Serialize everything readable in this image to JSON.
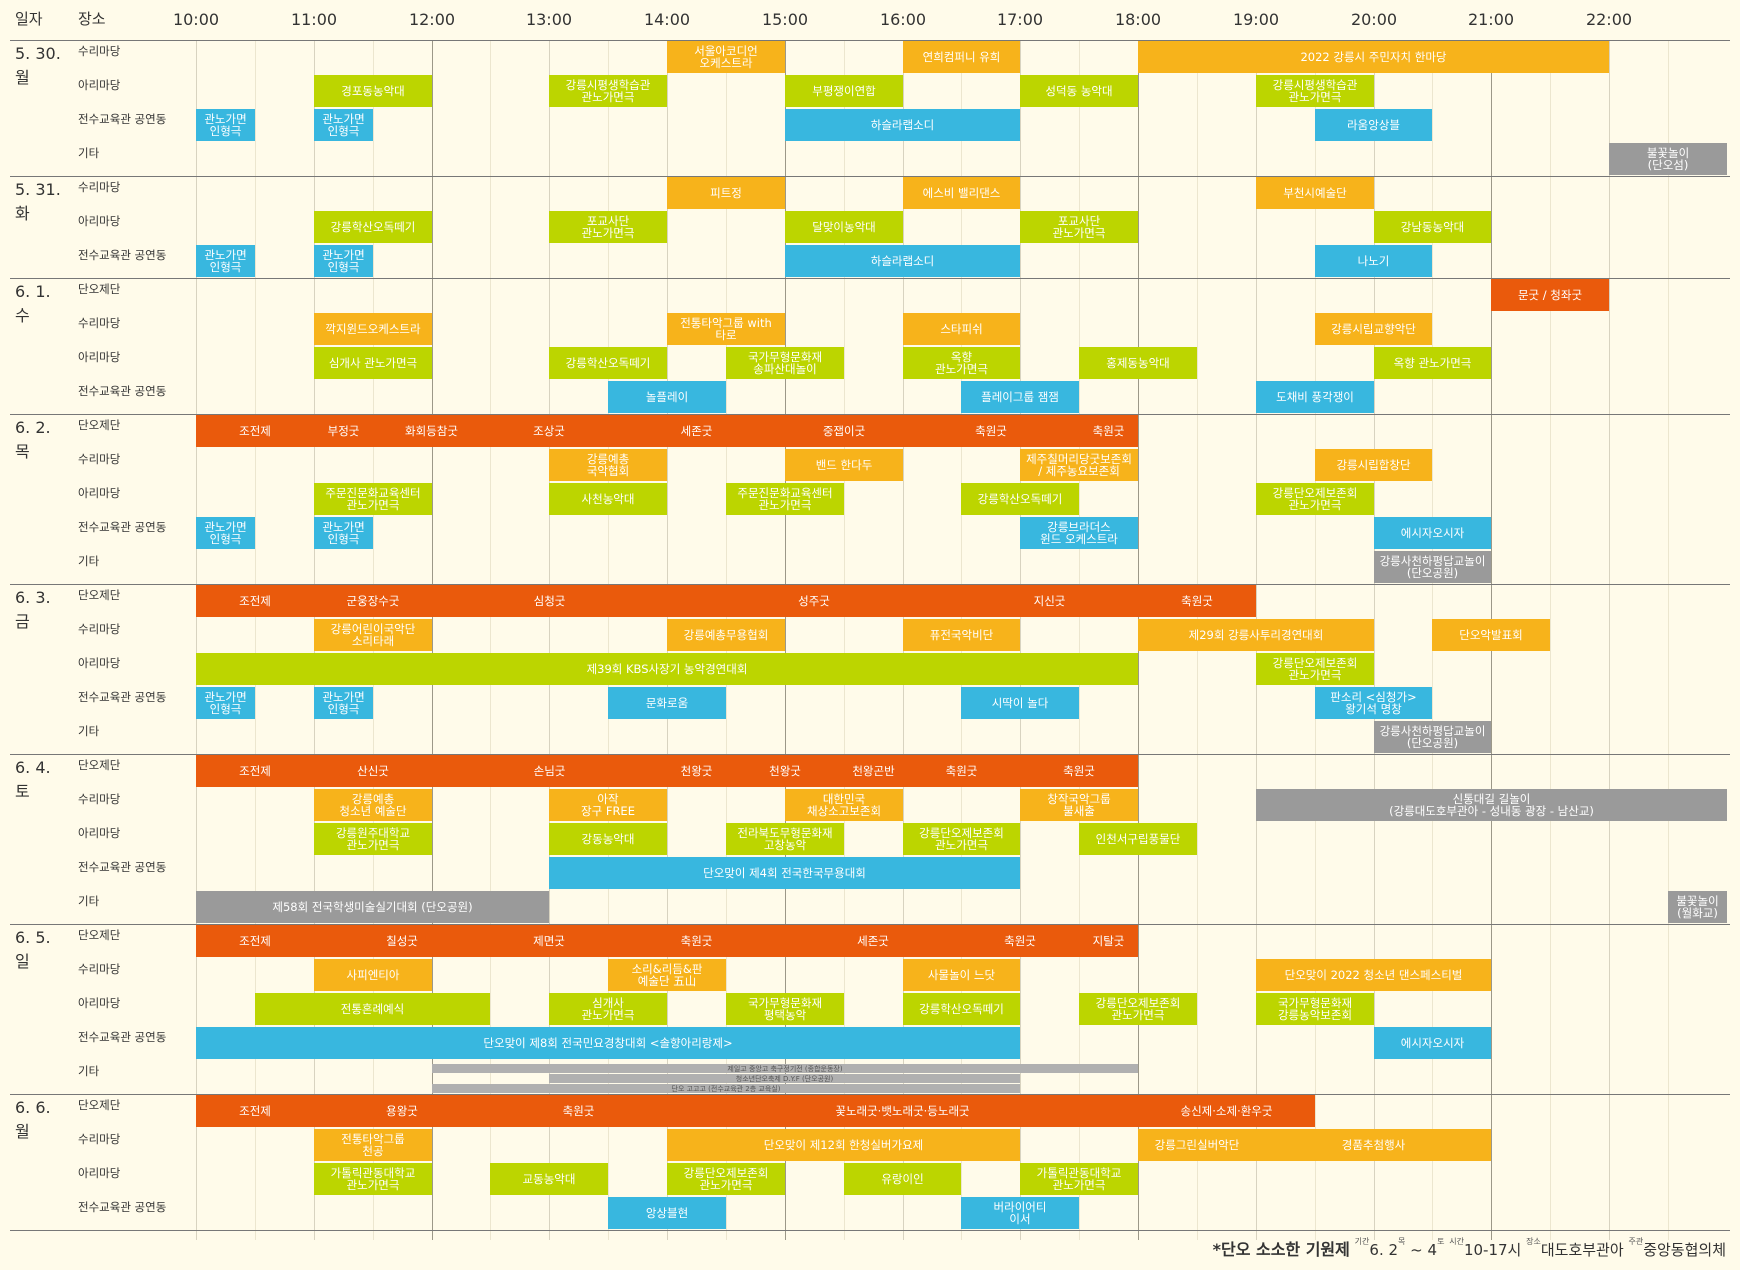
{
  "header": {
    "date_col": "일자",
    "venue_col": "장소"
  },
  "times": [
    "10:00",
    "11:00",
    "12:00",
    "13:00",
    "14:00",
    "15:00",
    "16:00",
    "17:00",
    "18:00",
    "19:00",
    "20:00",
    "21:00",
    "22:00"
  ],
  "colors": {
    "orange": "#f7b31b",
    "green": "#bcd500",
    "blue": "#38b7df",
    "gray": "#9a9a9a",
    "red": "#ea5a0c",
    "bg": "#fffbea"
  },
  "days": [
    {
      "label": "5. 30.\n월",
      "venues": [
        {
          "name": "수리마당",
          "events": [
            [
              "서울아코디언\n오케스트라",
              14,
              15,
              "orange"
            ],
            [
              "연희컴퍼니 유희",
              16,
              17,
              "orange"
            ],
            [
              "2022 강릉시 주민자치 한마당",
              18,
              22,
              "orange"
            ]
          ]
        },
        {
          "name": "아리마당",
          "events": [
            [
              "경포동농악대",
              11,
              12,
              "green"
            ],
            [
              "강릉시평생학습관\n관노가면극",
              13,
              14,
              "green"
            ],
            [
              "부평쟁이연합",
              15,
              16,
              "green"
            ],
            [
              "성덕동 농악대",
              17,
              18,
              "green"
            ],
            [
              "강릉시평생학습관\n관노가면극",
              19,
              20,
              "green"
            ]
          ]
        },
        {
          "name": "전수교육관 공연동",
          "events": [
            [
              "관노가면\n인형극",
              10,
              10.5,
              "blue"
            ],
            [
              "관노가면\n인형극",
              11,
              11.5,
              "blue"
            ],
            [
              "하슬라랩소디",
              15,
              17,
              "blue"
            ],
            [
              "라움앙상블",
              19.5,
              20.5,
              "blue"
            ]
          ]
        },
        {
          "name": "기타",
          "events": [
            [
              "불꽃놀이\n(단오섬)",
              22,
              23,
              "gray"
            ]
          ]
        }
      ]
    },
    {
      "label": "5. 31.\n화",
      "venues": [
        {
          "name": "수리마당",
          "events": [
            [
              "피트정",
              14,
              15,
              "orange"
            ],
            [
              "에스비 밸리댄스",
              16,
              17,
              "orange"
            ],
            [
              "부천시예술단",
              19,
              20,
              "orange"
            ]
          ]
        },
        {
          "name": "아리마당",
          "events": [
            [
              "강릉학산오독떼기",
              11,
              12,
              "green"
            ],
            [
              "포교사단\n관노가면극",
              13,
              14,
              "green"
            ],
            [
              "달맞이농악대",
              15,
              16,
              "green"
            ],
            [
              "포교사단\n관노가면극",
              17,
              18,
              "green"
            ],
            [
              "강남동농악대",
              20,
              21,
              "green"
            ]
          ]
        },
        {
          "name": "전수교육관 공연동",
          "events": [
            [
              "관노가면\n인형극",
              10,
              10.5,
              "blue"
            ],
            [
              "관노가면\n인형극",
              11,
              11.5,
              "blue"
            ],
            [
              "하슬라랩소디",
              15,
              17,
              "blue"
            ],
            [
              "나노기",
              19.5,
              20.5,
              "blue"
            ]
          ]
        }
      ]
    },
    {
      "label": "6. 1.\n수",
      "venues": [
        {
          "name": "단오제단",
          "events": [
            [
              "문굿 / 청좌굿",
              21,
              22,
              "red"
            ]
          ]
        },
        {
          "name": "수리마당",
          "events": [
            [
              "깍지윈드오케스트라",
              11,
              12,
              "orange"
            ],
            [
              "전통타악그룹 with\n타로",
              14,
              15,
              "orange"
            ],
            [
              "스타피쉬",
              16,
              17,
              "orange"
            ],
            [
              "강릉시립교향악단",
              19.5,
              20.5,
              "orange"
            ]
          ]
        },
        {
          "name": "아리마당",
          "events": [
            [
              "심개사 관노가면극",
              11,
              12,
              "green"
            ],
            [
              "강릉학산오독떼기",
              13,
              14,
              "green"
            ],
            [
              "국가무형문화재\n송파산대놀이",
              14.5,
              15.5,
              "green"
            ],
            [
              "옥향\n관노가면극",
              16,
              17,
              "green"
            ],
            [
              "홍제동농악대",
              17.5,
              18.5,
              "green"
            ],
            [
              "옥향 관노가면극",
              20,
              21,
              "green"
            ]
          ]
        },
        {
          "name": "전수교육관 공연동",
          "events": [
            [
              "놀플레이",
              13.5,
              14.5,
              "blue"
            ],
            [
              "플레이그룹 잼잼",
              16.5,
              17.5,
              "blue"
            ],
            [
              "도채비 풍각쟁이",
              19,
              20,
              "blue"
            ]
          ]
        }
      ]
    },
    {
      "label": "6. 2.\n목",
      "venues": [
        {
          "name": "단오제단",
          "events": [
            [
              "조전제",
              10,
              11,
              "red"
            ],
            [
              "부정굿",
              11,
              11.5,
              "red"
            ],
            [
              "화회등참굿",
              11.5,
              12.5,
              "red"
            ],
            [
              "조상굿",
              12.5,
              13.5,
              "red"
            ],
            [
              "세존굿",
              13.5,
              15,
              "red"
            ],
            [
              "중잽이굿",
              15,
              16,
              "red"
            ],
            [
              "축원굿",
              16,
              17.5,
              "red"
            ],
            [
              "축원굿",
              17.5,
              18,
              "red"
            ]
          ]
        },
        {
          "name": "수리마당",
          "events": [
            [
              "강릉예총\n국악협회",
              13,
              14,
              "orange"
            ],
            [
              "밴드 한다두",
              15,
              16,
              "orange"
            ],
            [
              "제주칠머리당굿보존회\n/ 제주농요보존회",
              17,
              18,
              "orange"
            ],
            [
              "강릉시립합창단",
              19.5,
              20.5,
              "orange"
            ]
          ]
        },
        {
          "name": "아리마당",
          "events": [
            [
              "주문진문화교육센터\n관노가면극",
              11,
              12,
              "green"
            ],
            [
              "사천농악대",
              13,
              14,
              "green"
            ],
            [
              "주문진문화교육센터\n관노가면극",
              14.5,
              15.5,
              "green"
            ],
            [
              "강릉학산오독떼기",
              16.5,
              17.5,
              "green"
            ],
            [
              "강릉단오제보존회\n관노가면극",
              19,
              20,
              "green"
            ]
          ]
        },
        {
          "name": "전수교육관 공연동",
          "events": [
            [
              "관노가면\n인형극",
              10,
              10.5,
              "blue"
            ],
            [
              "관노가면\n인형극",
              11,
              11.5,
              "blue"
            ],
            [
              "강릉브라더스\n윈드 오케스트라",
              17,
              18,
              "blue"
            ],
            [
              "에시자오시자",
              20,
              21,
              "blue"
            ]
          ]
        },
        {
          "name": "기타",
          "events": [
            [
              "강릉사천하평답교놀이\n(단오공원)",
              20,
              21,
              "gray"
            ]
          ]
        }
      ]
    },
    {
      "label": "6. 3.\n금",
      "venues": [
        {
          "name": "단오제단",
          "events": [
            [
              "조전제",
              10,
              11,
              "red"
            ],
            [
              "군웅장수굿",
              11,
              12,
              "red"
            ],
            [
              "심청굿",
              12,
              14,
              "red"
            ],
            [
              "성주굿",
              14,
              16.5,
              "red"
            ],
            [
              "지신굿",
              16.5,
              18,
              "red"
            ],
            [
              "축원굿",
              18,
              19,
              "red"
            ]
          ]
        },
        {
          "name": "수리마당",
          "events": [
            [
              "강릉어린이국악단\n소리타래",
              11,
              12,
              "orange"
            ],
            [
              "강릉예총무용협회",
              14,
              15,
              "orange"
            ],
            [
              "퓨전국악비단",
              16,
              17,
              "orange"
            ],
            [
              "제29회 강릉사투리경연대회",
              18,
              20,
              "orange"
            ],
            [
              "단오악발표회",
              20.5,
              21.5,
              "orange"
            ]
          ]
        },
        {
          "name": "아리마당",
          "events": [
            [
              "제39회 KBS사장기 농악경연대회",
              10,
              18,
              "green"
            ],
            [
              "강릉단오제보존회\n관노가면극",
              19,
              20,
              "green"
            ]
          ]
        },
        {
          "name": "전수교육관 공연동",
          "events": [
            [
              "관노가면\n인형극",
              10,
              10.5,
              "blue"
            ],
            [
              "관노가면\n인형극",
              11,
              11.5,
              "blue"
            ],
            [
              "문화로움",
              13.5,
              14.5,
              "blue"
            ],
            [
              "시딱이 놀다",
              16.5,
              17.5,
              "blue"
            ],
            [
              "판소리 <심청가>\n왕기석 명창",
              19.5,
              20.5,
              "blue"
            ]
          ]
        },
        {
          "name": "기타",
          "events": [
            [
              "강릉사천하평답교놀이\n(단오공원)",
              20,
              21,
              "gray"
            ]
          ]
        }
      ]
    },
    {
      "label": "6. 4.\n토",
      "venues": [
        {
          "name": "단오제단",
          "events": [
            [
              "조전제",
              10,
              11,
              "red"
            ],
            [
              "산신굿",
              11,
              12,
              "red"
            ],
            [
              "손님굿",
              12,
              14,
              "red"
            ],
            [
              "천왕굿",
              14,
              14.5,
              "red"
            ],
            [
              "천왕굿",
              14.5,
              15.5,
              "red"
            ],
            [
              "천왕곤반",
              15.5,
              16,
              "red"
            ],
            [
              "축원굿",
              16,
              17,
              "red"
            ],
            [
              "축원굿",
              17,
              18,
              "red"
            ]
          ]
        },
        {
          "name": "수리마당",
          "events": [
            [
              "강릉예총\n청소년 예술단",
              11,
              12,
              "orange"
            ],
            [
              "아작\n장구 FREE",
              13,
              14,
              "orange"
            ],
            [
              "대한민국\n채상소고보존회",
              15,
              16,
              "orange"
            ],
            [
              "창작국악그룹\n불새출",
              17,
              18,
              "orange"
            ],
            [
              "신통대길 길놀이\n(강릉대도호부관아 - 성내동 광장 - 남산교)",
              19,
              23,
              "gray"
            ]
          ]
        },
        {
          "name": "아리마당",
          "events": [
            [
              "강릉원주대학교\n관노가면극",
              11,
              12,
              "green"
            ],
            [
              "강동농악대",
              13,
              14,
              "green"
            ],
            [
              "전라북도무형문화재\n고창농악",
              14.5,
              15.5,
              "green"
            ],
            [
              "강릉단오제보존회\n관노가면극",
              16,
              17,
              "green"
            ],
            [
              "인천서구립풍물단",
              17.5,
              18.5,
              "green"
            ]
          ]
        },
        {
          "name": "전수교육관 공연동",
          "events": [
            [
              "단오맞이 제4회 전국한국무용대회",
              13,
              17,
              "blue"
            ]
          ]
        },
        {
          "name": "기타",
          "events": [
            [
              "제58회 전국학생미술실기대회 (단오공원)",
              10,
              13,
              "gray"
            ],
            [
              "불꽃놀이\n(월화교)",
              22.5,
              23,
              "gray"
            ]
          ]
        }
      ]
    },
    {
      "label": "6. 5.\n일",
      "venues": [
        {
          "name": "단오제단",
          "events": [
            [
              "조전제",
              10,
              11,
              "red"
            ],
            [
              "칠성굿",
              11,
              12.5,
              "red"
            ],
            [
              "제면굿",
              12.5,
              13.5,
              "red"
            ],
            [
              "축원굿",
              13.5,
              15,
              "red"
            ],
            [
              "세존굿",
              15,
              16.5,
              "red"
            ],
            [
              "축원굿",
              16.5,
              17.5,
              "red"
            ],
            [
              "지탈굿",
              17.5,
              18,
              "red"
            ]
          ]
        },
        {
          "name": "수리마당",
          "events": [
            [
              "사피엔티아",
              11,
              12,
              "orange"
            ],
            [
              "소리&리듬&판\n예술단 五山",
              13.5,
              14.5,
              "orange"
            ],
            [
              "사물놀이 느닷",
              16,
              17,
              "orange"
            ],
            [
              "단오맞이 2022 청소년 댄스페스티벌",
              19,
              21,
              "orange"
            ]
          ]
        },
        {
          "name": "아리마당",
          "events": [
            [
              "전통혼례예식",
              10.5,
              12.5,
              "green"
            ],
            [
              "심개사\n관노가면극",
              13,
              14,
              "green"
            ],
            [
              "국가무형문화재\n평택농악",
              14.5,
              15.5,
              "green"
            ],
            [
              "강릉학산오독떼기",
              16,
              17,
              "green"
            ],
            [
              "강릉단오제보존회\n관노가면극",
              17.5,
              18.5,
              "green"
            ],
            [
              "국가무형문화재\n강릉농악보존회",
              19,
              20,
              "green"
            ]
          ]
        },
        {
          "name": "전수교육관 공연동",
          "events": [
            [
              "단오맞이 제8회 전국민요경창대회 <솔향아리랑제>",
              10,
              17,
              "blue"
            ],
            [
              "에시자오시자",
              20,
              21,
              "blue"
            ]
          ]
        },
        {
          "name": "기타",
          "thin": [
            [
              "제일고 중앙고 축구정기전 (종합운동장)",
              12,
              18
            ],
            [
              "청소년단오축제 D.Y.F (단오공원)",
              13,
              17
            ],
            [
              "단오 고고고 (전수교육관 2층 교육실)",
              12,
              17
            ]
          ]
        }
      ]
    },
    {
      "label": "6. 6.\n월",
      "venues": [
        {
          "name": "단오제단",
          "events": [
            [
              "조전제",
              10,
              11,
              "red"
            ],
            [
              "용왕굿",
              11,
              12.5,
              "red"
            ],
            [
              "축원굿",
              12.5,
              14,
              "red"
            ],
            [
              "꽃노래굿·뱃노래굿·등노래굿",
              14,
              18,
              "red"
            ],
            [
              "송신제·소제·환우굿",
              18,
              19.5,
              "red"
            ]
          ]
        },
        {
          "name": "수리마당",
          "events": [
            [
              "전통타악그룹\n천공",
              11,
              12,
              "orange"
            ],
            [
              "단오맞이 제12회 한청실버가요제",
              14,
              17,
              "orange"
            ],
            [
              "강릉그린실버악단",
              18,
              19,
              "orange"
            ],
            [
              "경품추첨행사",
              19,
              21,
              "orange"
            ]
          ]
        },
        {
          "name": "아리마당",
          "events": [
            [
              "가톨릭관동대학교\n관노가면극",
              11,
              12,
              "green"
            ],
            [
              "교동농악대",
              12.5,
              13.5,
              "green"
            ],
            [
              "강릉단오제보존회\n관노가면극",
              14,
              15,
              "green"
            ],
            [
              "유랑이인",
              15.5,
              16.5,
              "green"
            ],
            [
              "가톨릭관동대학교\n관노가면극",
              17,
              18,
              "green"
            ]
          ]
        },
        {
          "name": "전수교육관 공연동",
          "events": [
            [
              "앙상블현",
              13.5,
              14.5,
              "blue"
            ],
            [
              "버라이어티\n이서",
              16.5,
              17.5,
              "blue"
            ]
          ]
        }
      ]
    }
  ],
  "footer": {
    "title": "*단오 소소한 기원제",
    "k1": "기간",
    "period": "6. 2",
    "k_wed": "목",
    "tilde": " ~ 4",
    "k_sat": "토",
    "k2": "시간",
    "hours": "10-17시",
    "k3": "장소",
    "place": "대도호부관아",
    "k4": "주관",
    "org": "중앙동협의체"
  }
}
